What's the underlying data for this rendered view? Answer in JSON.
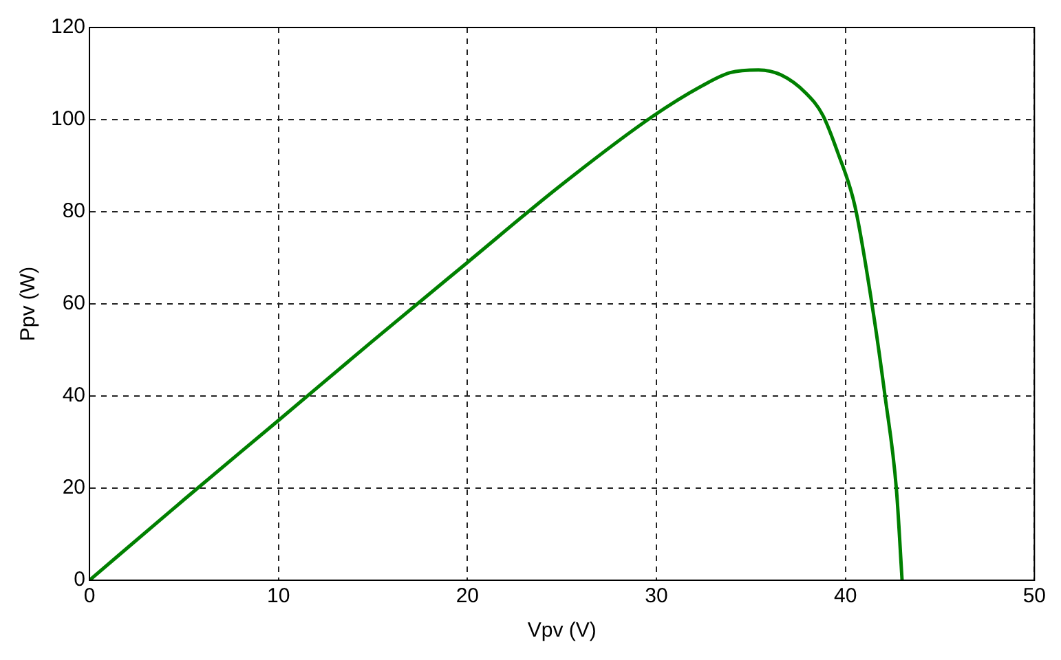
{
  "chart_data": {
    "type": "line",
    "xlabel": "Vpv (V)",
    "ylabel": "Ppv (W)",
    "xlim": [
      0,
      50
    ],
    "ylim": [
      0,
      120
    ],
    "xticks": [
      0,
      10,
      20,
      30,
      40,
      50
    ],
    "yticks": [
      0,
      20,
      40,
      60,
      80,
      100,
      120
    ],
    "grid": true,
    "legend": false,
    "marker": "none",
    "line_style": "solid",
    "series": [
      {
        "color": "#008000",
        "x": [
          0,
          5,
          10,
          15,
          20,
          24.9,
          29.8,
          32.4,
          33.9,
          35.4,
          36.6,
          37.9,
          38.8,
          39.6,
          40.5,
          41.4,
          42.1,
          42.7,
          43.0
        ],
        "values": [
          0,
          17.5,
          34.7,
          52,
          69,
          85.6,
          100.7,
          107.3,
          110.2,
          110.8,
          109.7,
          105.8,
          101,
          92.8,
          81.3,
          60.1,
          39.9,
          19.7,
          0
        ]
      }
    ]
  }
}
